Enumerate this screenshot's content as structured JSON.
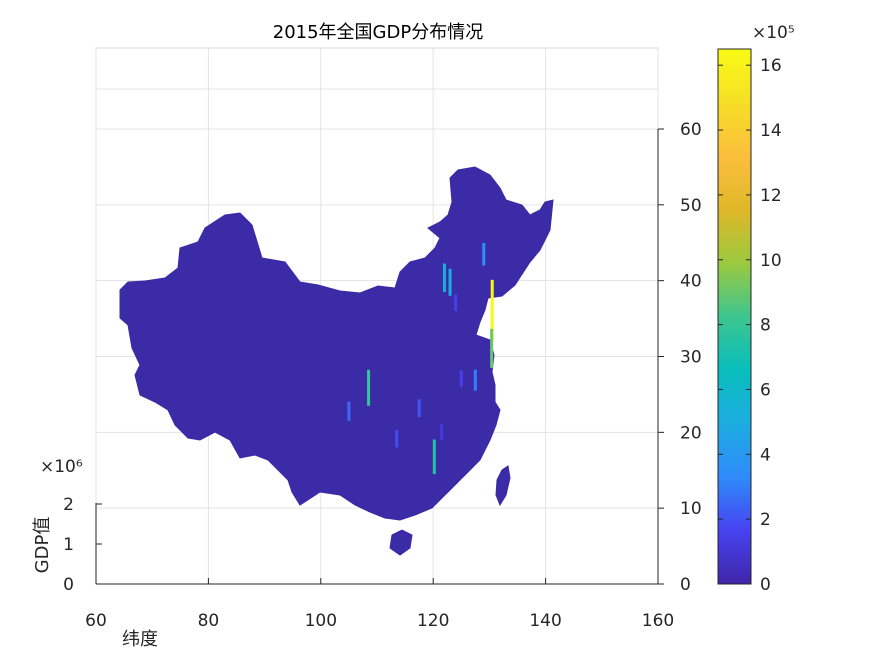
{
  "chart_data": {
    "type": "map",
    "title": "2015年全国GDP分布情况",
    "xlabel": "纬度",
    "ylabel": "GDP值",
    "x_ticks": [
      60,
      80,
      100,
      120,
      140,
      160
    ],
    "xlim": [
      60,
      160
    ],
    "lat_ticks": [
      0,
      10,
      20,
      30,
      40,
      50,
      60
    ],
    "lat_lim": [
      0,
      60
    ],
    "gdp_axis_ticks": [
      0,
      1,
      2
    ],
    "gdp_axis_exponent": "×10⁶",
    "colorbar": {
      "ticks": [
        0,
        2,
        4,
        6,
        8,
        10,
        12,
        14,
        16
      ],
      "range": [
        0,
        16.5
      ],
      "exponent": "×10⁵",
      "colormap": [
        "#3e26a8",
        "#4743f1",
        "#2f8bfb",
        "#1cace0",
        "#08bdbc",
        "#3dc68f",
        "#9cc93e",
        "#e0b829",
        "#fcbe3d",
        "#f6df25",
        "#f9fa14"
      ]
    },
    "grid": true,
    "map_fill_color": "#3b2ba6",
    "spikes": [
      {
        "lon": 130.5,
        "lat": 32.0,
        "value": 16.5
      },
      {
        "lon": 130.4,
        "lat": 28.5,
        "value": 9.0
      },
      {
        "lon": 108.5,
        "lat": 23.5,
        "value": 8.0
      },
      {
        "lon": 120.2,
        "lat": 14.5,
        "value": 7.5
      },
      {
        "lon": 122.0,
        "lat": 38.5,
        "value": 5.5
      },
      {
        "lon": 123.0,
        "lat": 38.0,
        "value": 5.0
      },
      {
        "lon": 129.0,
        "lat": 42.0,
        "value": 3.5
      },
      {
        "lon": 127.5,
        "lat": 25.5,
        "value": 3.0
      },
      {
        "lon": 105.0,
        "lat": 21.5,
        "value": 2.5
      },
      {
        "lon": 117.5,
        "lat": 22.0,
        "value": 2.0
      },
      {
        "lon": 113.5,
        "lat": 18.0,
        "value": 1.8
      },
      {
        "lon": 124.0,
        "lat": 36.0,
        "value": 1.5
      },
      {
        "lon": 125.0,
        "lat": 26.0,
        "value": 1.5
      },
      {
        "lon": 121.5,
        "lat": 19.0,
        "value": 1.2
      }
    ]
  }
}
